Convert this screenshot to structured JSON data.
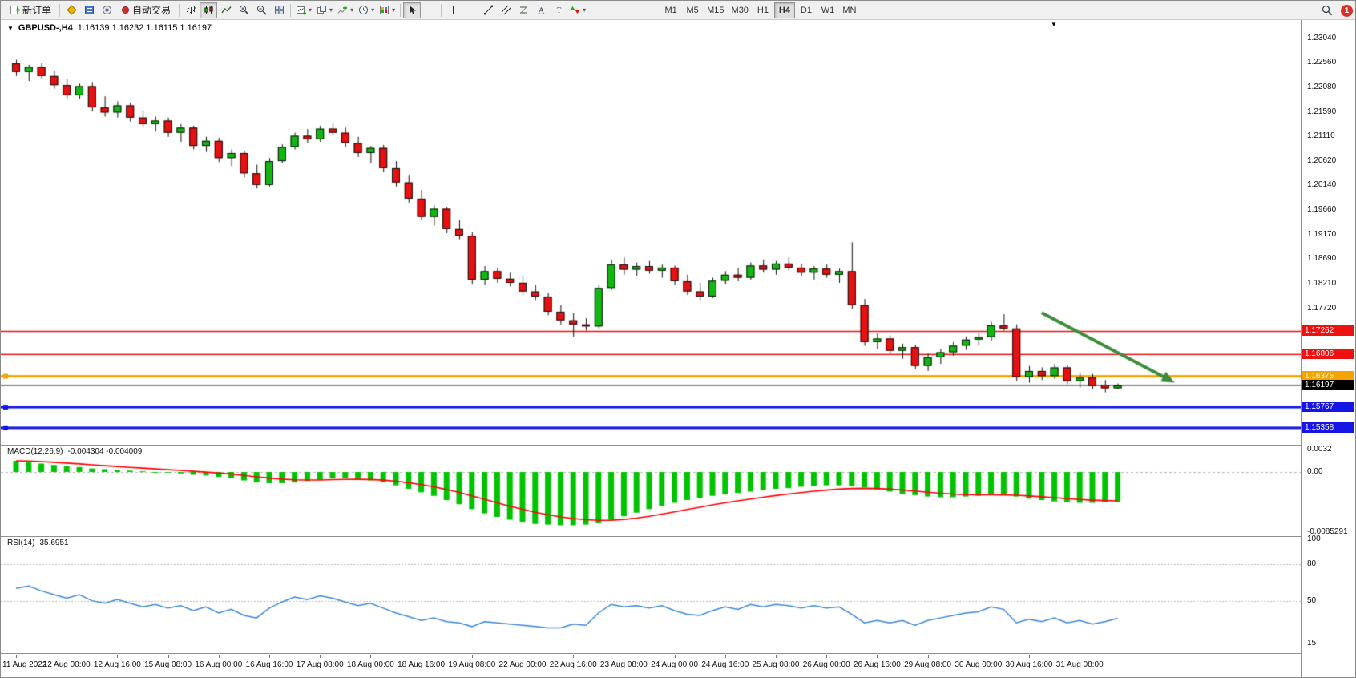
{
  "toolbar": {
    "new_order": "新订单",
    "auto_trading": "自动交易",
    "timeframes": [
      "M1",
      "M5",
      "M15",
      "M30",
      "H1",
      "H4",
      "D1",
      "W1",
      "MN"
    ],
    "active_timeframe": "H4",
    "notification_badge": "1"
  },
  "main_chart": {
    "symbol_title": "GBPUSD-,H4",
    "ohlc_text": "1.16139 1.16232 1.16115 1.16197",
    "price_scale": [
      "1.23040",
      "1.22560",
      "1.22080",
      "1.21590",
      "1.21110",
      "1.20620",
      "1.20140",
      "1.19660",
      "1.19170",
      "1.18690",
      "1.18210",
      "1.17720"
    ],
    "price_tags": [
      {
        "value": "1.17262",
        "color": "#ee1111"
      },
      {
        "value": "1.16806",
        "color": "#ee1111"
      },
      {
        "value": "1.16375",
        "color": "#f5a300"
      },
      {
        "value": "1.16197",
        "color": "#000000"
      },
      {
        "value": "1.15767",
        "color": "#1515e6"
      },
      {
        "value": "1.15358",
        "color": "#1515e6"
      }
    ]
  },
  "macd": {
    "label": "MACD(12,26,9)",
    "values_text": "-0.004304 -0.004009",
    "scale": [
      "0.0032",
      "0.00",
      "-0.0085291"
    ]
  },
  "rsi": {
    "label": "RSI(14)",
    "value_text": "35.6951",
    "scale": [
      "100",
      "80",
      "50",
      "15"
    ]
  },
  "time_axis": [
    "11 Aug 2022",
    "12 Aug 00:00",
    "12 Aug 16:00",
    "15 Aug 08:00",
    "16 Aug 00:00",
    "16 Aug 16:00",
    "17 Aug 08:00",
    "18 Aug 00:00",
    "18 Aug 16:00",
    "19 Aug 08:00",
    "22 Aug 00:00",
    "22 Aug 16:00",
    "23 Aug 08:00",
    "24 Aug 00:00",
    "24 Aug 16:00",
    "25 Aug 08:00",
    "26 Aug 00:00",
    "26 Aug 16:00",
    "29 Aug 08:00",
    "30 Aug 00:00",
    "30 Aug 16:00",
    "31 Aug 08:00"
  ],
  "chart_data": {
    "type": "candlestick",
    "symbol": "GBPUSD-",
    "timeframe": "H4",
    "bull_color": "#12b812",
    "bear_color": "#e81010",
    "candle_border": "#111111",
    "candles": [
      [
        1.2255,
        1.2262,
        1.223,
        1.2238
      ],
      [
        1.2238,
        1.2252,
        1.222,
        1.2248
      ],
      [
        1.2248,
        1.2255,
        1.2225,
        1.223
      ],
      [
        1.223,
        1.224,
        1.2205,
        1.2212
      ],
      [
        1.2212,
        1.2225,
        1.2185,
        1.2192
      ],
      [
        1.2192,
        1.2215,
        1.2185,
        1.221
      ],
      [
        1.221,
        1.2218,
        1.216,
        1.2168
      ],
      [
        1.2168,
        1.219,
        1.215,
        1.2158
      ],
      [
        1.2158,
        1.218,
        1.2148,
        1.2172
      ],
      [
        1.2172,
        1.2178,
        1.214,
        1.2148
      ],
      [
        1.2148,
        1.2162,
        1.2128,
        1.2135
      ],
      [
        1.2135,
        1.215,
        1.212,
        1.2142
      ],
      [
        1.2142,
        1.2148,
        1.211,
        1.2118
      ],
      [
        1.2118,
        1.2135,
        1.21,
        1.2128
      ],
      [
        1.2128,
        1.2132,
        1.2085,
        1.2092
      ],
      [
        1.2092,
        1.211,
        1.208,
        1.2102
      ],
      [
        1.2102,
        1.2108,
        1.206,
        1.2068
      ],
      [
        1.2068,
        1.2085,
        1.2052,
        1.2078
      ],
      [
        1.2078,
        1.2082,
        1.203,
        1.2038
      ],
      [
        1.2038,
        1.2055,
        1.2008,
        1.2015
      ],
      [
        1.2015,
        1.2068,
        1.2012,
        1.2062
      ],
      [
        1.2062,
        1.2095,
        1.2058,
        1.209
      ],
      [
        1.209,
        1.2118,
        1.2085,
        1.2112
      ],
      [
        1.2112,
        1.2125,
        1.2098,
        1.2105
      ],
      [
        1.2105,
        1.2132,
        1.21,
        1.2126
      ],
      [
        1.2126,
        1.2138,
        1.2112,
        1.2118
      ],
      [
        1.2118,
        1.2128,
        1.209,
        1.2098
      ],
      [
        1.2098,
        1.211,
        1.207,
        1.2078
      ],
      [
        1.2078,
        1.2092,
        1.2058,
        1.2088
      ],
      [
        1.2088,
        1.2094,
        1.204,
        1.2048
      ],
      [
        1.2048,
        1.2062,
        1.2012,
        1.202
      ],
      [
        1.202,
        1.2035,
        1.198,
        1.1988
      ],
      [
        1.1988,
        1.2005,
        1.1945,
        1.1952
      ],
      [
        1.1952,
        1.1975,
        1.1935,
        1.1968
      ],
      [
        1.1968,
        1.1972,
        1.192,
        1.1928
      ],
      [
        1.1928,
        1.1945,
        1.1908,
        1.1915
      ],
      [
        1.1915,
        1.1922,
        1.182,
        1.1828
      ],
      [
        1.1828,
        1.1855,
        1.1818,
        1.1845
      ],
      [
        1.1845,
        1.1852,
        1.1822,
        1.183
      ],
      [
        1.183,
        1.1842,
        1.1815,
        1.1822
      ],
      [
        1.1822,
        1.1835,
        1.1798,
        1.1805
      ],
      [
        1.1805,
        1.1818,
        1.1788,
        1.1795
      ],
      [
        1.1795,
        1.1802,
        1.1758,
        1.1765
      ],
      [
        1.1765,
        1.1778,
        1.174,
        1.1748
      ],
      [
        1.1748,
        1.1762,
        1.1716,
        1.174
      ],
      [
        1.174,
        1.1752,
        1.1728,
        1.1736
      ],
      [
        1.1736,
        1.1818,
        1.1732,
        1.1812
      ],
      [
        1.1812,
        1.1868,
        1.1808,
        1.1858
      ],
      [
        1.1858,
        1.1872,
        1.1838,
        1.1848
      ],
      [
        1.1848,
        1.1862,
        1.1836,
        1.1855
      ],
      [
        1.1855,
        1.1865,
        1.184,
        1.1846
      ],
      [
        1.1846,
        1.1858,
        1.1832,
        1.1852
      ],
      [
        1.1852,
        1.1856,
        1.1818,
        1.1825
      ],
      [
        1.1825,
        1.1838,
        1.1798,
        1.1805
      ],
      [
        1.1805,
        1.1822,
        1.1788,
        1.1795
      ],
      [
        1.1795,
        1.1832,
        1.1792,
        1.1826
      ],
      [
        1.1826,
        1.1845,
        1.182,
        1.1838
      ],
      [
        1.1838,
        1.1852,
        1.1825,
        1.1832
      ],
      [
        1.1832,
        1.1862,
        1.1828,
        1.1856
      ],
      [
        1.1856,
        1.1868,
        1.1842,
        1.1848
      ],
      [
        1.1848,
        1.1865,
        1.1838,
        1.186
      ],
      [
        1.186,
        1.1872,
        1.1846,
        1.1852
      ],
      [
        1.1852,
        1.186,
        1.1835,
        1.1842
      ],
      [
        1.1842,
        1.1855,
        1.1828,
        1.185
      ],
      [
        1.185,
        1.1858,
        1.1832,
        1.1838
      ],
      [
        1.1838,
        1.185,
        1.1822,
        1.1845
      ],
      [
        1.1845,
        1.1902,
        1.177,
        1.1778
      ],
      [
        1.1778,
        1.179,
        1.1698,
        1.1705
      ],
      [
        1.1705,
        1.1722,
        1.1692,
        1.1712
      ],
      [
        1.1712,
        1.1718,
        1.1682,
        1.1688
      ],
      [
        1.1688,
        1.1702,
        1.1672,
        1.1695
      ],
      [
        1.1695,
        1.17,
        1.1652,
        1.1658
      ],
      [
        1.1658,
        1.1682,
        1.1648,
        1.1675
      ],
      [
        1.1675,
        1.1692,
        1.1662,
        1.1685
      ],
      [
        1.1685,
        1.1705,
        1.1678,
        1.1698
      ],
      [
        1.1698,
        1.1716,
        1.169,
        1.171
      ],
      [
        1.171,
        1.1722,
        1.1698,
        1.1715
      ],
      [
        1.1715,
        1.1745,
        1.1708,
        1.1738
      ],
      [
        1.1738,
        1.176,
        1.1728,
        1.1732
      ],
      [
        1.1732,
        1.174,
        1.1628,
        1.1636
      ],
      [
        1.1636,
        1.1658,
        1.1625,
        1.1648
      ],
      [
        1.1648,
        1.1655,
        1.163,
        1.1638
      ],
      [
        1.1638,
        1.1662,
        1.1632,
        1.1655
      ],
      [
        1.1655,
        1.166,
        1.1622,
        1.1628
      ],
      [
        1.1628,
        1.1645,
        1.1615,
        1.1635
      ],
      [
        1.1635,
        1.1642,
        1.1612,
        1.1618
      ],
      [
        1.1621,
        1.163,
        1.1606,
        1.16139
      ],
      [
        1.16139,
        1.16232,
        1.16115,
        1.16197
      ]
    ],
    "hlines": [
      {
        "price": 1.17262,
        "color": "#ee1111",
        "width": 1.5
      },
      {
        "price": 1.16806,
        "color": "#ee1111",
        "width": 1.5
      },
      {
        "price": 1.16375,
        "color": "#f5a300",
        "width": 3
      },
      {
        "price": 1.16197,
        "color": "#141414",
        "width": 1.2
      },
      {
        "price": 1.15767,
        "color": "#1515e6",
        "width": 3
      },
      {
        "price": 1.15358,
        "color": "#1515e6",
        "width": 3
      }
    ],
    "macd_histogram": [
      0.0016,
      0.0014,
      0.0012,
      0.001,
      0.0008,
      0.0007,
      0.0005,
      0.0004,
      0.0003,
      0.0002,
      0.0001,
      0.0,
      -0.0001,
      -0.0002,
      -0.0004,
      -0.0005,
      -0.0007,
      -0.0009,
      -0.0012,
      -0.0015,
      -0.0016,
      -0.0016,
      -0.0015,
      -0.0013,
      -0.0011,
      -0.0009,
      -0.0009,
      -0.001,
      -0.0012,
      -0.0015,
      -0.0019,
      -0.0024,
      -0.0029,
      -0.0034,
      -0.004,
      -0.0046,
      -0.0053,
      -0.0059,
      -0.0064,
      -0.0068,
      -0.0071,
      -0.0074,
      -0.0075,
      -0.0076,
      -0.0076,
      -0.0075,
      -0.0072,
      -0.0068,
      -0.0063,
      -0.0058,
      -0.0053,
      -0.0048,
      -0.0044,
      -0.004,
      -0.0037,
      -0.0034,
      -0.0032,
      -0.003,
      -0.0028,
      -0.0026,
      -0.0024,
      -0.0023,
      -0.0021,
      -0.002,
      -0.0019,
      -0.0019,
      -0.002,
      -0.0022,
      -0.0025,
      -0.0028,
      -0.0031,
      -0.0033,
      -0.0035,
      -0.0036,
      -0.0036,
      -0.0035,
      -0.0034,
      -0.0033,
      -0.0033,
      -0.0035,
      -0.0038,
      -0.004,
      -0.0042,
      -0.0043,
      -0.0044,
      -0.0044,
      -0.0043,
      -0.0043
    ],
    "macd_hist_color": "#00c400",
    "macd_signal_color": "#ff0000",
    "rsi_values": [
      60,
      62,
      58,
      55,
      52,
      55,
      50,
      48,
      51,
      48,
      45,
      47,
      44,
      46,
      42,
      45,
      40,
      43,
      38,
      36,
      44,
      49,
      53,
      51,
      54,
      52,
      49,
      46,
      48,
      44,
      40,
      37,
      34,
      36,
      33,
      32,
      29,
      33,
      32,
      31,
      30,
      29,
      28,
      28,
      31,
      30,
      40,
      47,
      45,
      46,
      44,
      46,
      42,
      39,
      38,
      42,
      45,
      43,
      47,
      45,
      47,
      46,
      44,
      46,
      44,
      45,
      39,
      32,
      34,
      32,
      34,
      30,
      34,
      36,
      38,
      40,
      41,
      45,
      43,
      32,
      35,
      33,
      36,
      32,
      34,
      31,
      33,
      35.7
    ],
    "rsi_color": "#3c87d9",
    "rsi_levels": [
      80,
      50
    ],
    "arrow": {
      "from_bar": 81,
      "from_price": 1.1763,
      "to_bar": 91.5,
      "to_price": 1.1625,
      "color": "#3d8c3d"
    }
  }
}
